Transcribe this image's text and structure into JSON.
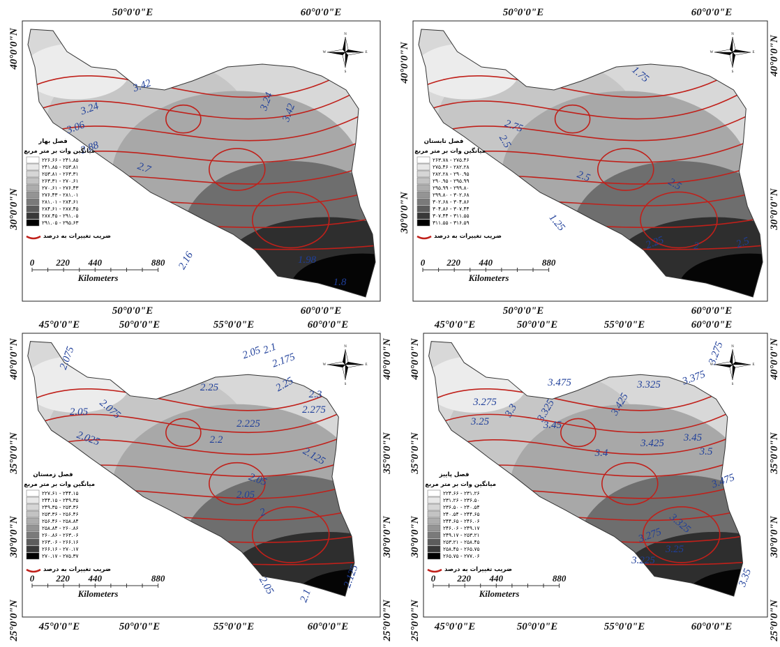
{
  "panels": [
    {
      "season_title": "فصل بهار",
      "legend_title": "میانگین وات بر متر مربع",
      "classes": [
        "۲۲۶.۶۶ - ۲۴۱.۸۵",
        "۲۴۱.۸۵ - ۲۵۳.۸۱",
        "۲۵۳.۸۱ - ۲۶۳.۳۱",
        "۲۶۳.۳۱ - ۲۷۰.۶۱",
        "۲۷۰.۶۱ - ۲۷۶.۴۳",
        "۲۷۶.۴۳ - ۲۸۱.۰۱",
        "۲۸۱.۰۱ - ۲۸۴.۶۱",
        "۲۸۴.۶۱ - ۲۸۷.۴۵",
        "۲۸۷.۴۵ - ۲۹۱.۰۵",
        "۲۹۱.۰۵ - ۲۹۵.۶۳"
      ],
      "isoline_legend": "ضریب تغییرات به درصد",
      "contour_labels": [
        "3.42",
        "3.24",
        "3.06",
        "2.88",
        "2.7",
        "2.16",
        "1.98",
        "1.8",
        "3.24",
        "3.42"
      ],
      "compass": [
        "N",
        "E",
        "S",
        "W"
      ],
      "scale": {
        "ticks": [
          "0",
          "220",
          "440",
          "880"
        ],
        "unit": "Kilometers"
      },
      "axes": {
        "top": [
          "50°0'0\"E",
          "60°0'0\"E"
        ],
        "bottom": [
          "50°0'0\"E",
          "60°0'0\"E"
        ],
        "left": [
          "40°0'0\"N",
          "30°0'0\"N"
        ],
        "right": []
      }
    },
    {
      "season_title": "فصل تابستان",
      "legend_title": "میانگین وات بر متر مربع",
      "classes": [
        "۲۶۳.۷۸ - ۲۷۵.۴۶",
        "۲۷۵.۴۶ - ۲۸۲.۲۸",
        "۲۸۲.۲۸ - ۲۹۰.۹۵",
        "۲۹۰.۹۵ - ۲۹۵.۹۹",
        "۲۹۵.۹۹ - ۲۹۹.۸۰",
        "۲۹۹.۸۰ - ۳۰۲.۶۸",
        "۳۰۲.۶۸ - ۳۰۴.۸۶",
        "۳۰۴.۸۶ - ۳۰۷.۴۴",
        "۳۰۷.۴۴ - ۳۱۱.۵۵",
        "۳۱۱.۵۵ - ۳۱۶.۵۹"
      ],
      "isoline_legend": "ضریب تغییرات به درصد",
      "contour_labels": [
        "1.75",
        "2.75",
        "2.5",
        "2.5",
        "2.5",
        "2.25",
        "2",
        "1.25",
        "2.5"
      ],
      "compass": [
        "N",
        "E",
        "S",
        "W"
      ],
      "scale": {
        "ticks": [
          "0",
          "220",
          "440",
          "880"
        ],
        "unit": "Kilometers"
      },
      "axes": {
        "top": [
          "50°0'0\"E",
          "60°0'0\"E"
        ],
        "bottom": [
          "50°0'0\"E",
          "60°0'0\"E"
        ],
        "left": [
          "40°0'0\"N",
          "30°0'0\"N"
        ],
        "right": [
          "40°0'0\"N",
          "30°0'0\"N"
        ]
      }
    },
    {
      "season_title": "فصل زمستان",
      "legend_title": "میانگین وات بر متر مربع",
      "classes": [
        "۲۲۷.۶۱ - ۲۴۴.۱۵",
        "۲۴۴.۱۵ - ۲۴۹.۳۵",
        "۲۴۹.۳۵ - ۲۵۳.۳۶",
        "۲۵۳.۳۶ - ۲۵۶.۴۶",
        "۲۵۶.۴۶ - ۲۵۸.۸۴",
        "۲۵۸.۸۴ - ۲۶۰.۸۶",
        "۲۶۰.۸۶ - ۲۶۳.۰۶",
        "۲۶۳.۰۶ - ۲۶۶.۱۶",
        "۲۶۶.۱۶ - ۲۷۰.۱۷",
        "۲۷۰.۱۷ - ۲۷۵.۳۷"
      ],
      "isoline_legend": "ضریب تغییرات به درصد",
      "contour_labels": [
        "2.075",
        "2.05",
        "2.1",
        "2.175",
        "2.25",
        "2.25",
        "2.3",
        "2.275",
        "2.05",
        "2.075",
        "2.025",
        "2.2",
        "2.225",
        "2.125",
        "2.05",
        "2.05",
        "2",
        "2.05",
        "2.1",
        "2.125"
      ],
      "compass": [
        "N",
        "E",
        "S",
        "W"
      ],
      "scale": {
        "ticks": [
          "0",
          "220",
          "440",
          "880"
        ],
        "unit": "Kilometers"
      },
      "axes": {
        "top": [
          "45°0'0\"E",
          "50°0'0\"E",
          "55°0'0\"E",
          "60°0'0\"E"
        ],
        "bottom": [
          "45°0'0\"E",
          "50°0'0\"E",
          "55°0'0\"E",
          "60°0'0\"E"
        ],
        "left": [
          "40°0'0\"N",
          "35°0'0\"N",
          "30°0'0\"N",
          "25°0'0\"N"
        ],
        "right": [
          "40°0'0\"N",
          "35°0'0\"N",
          "30°0'0\"N",
          "25°0'0\"N"
        ]
      }
    },
    {
      "season_title": "فصل پاییز",
      "legend_title": "میانگین وات بر متر مربع",
      "classes": [
        "۲۲۴.۶۶ - ۲۳۱.۲۶",
        "۲۳۱.۲۶ - ۲۳۶.۵۰",
        "۲۳۶.۵۰ - ۲۴۰.۵۴",
        "۲۴۰.۵۴ - ۲۴۴.۶۵",
        "۲۴۴.۶۵ - ۲۴۶.۰۶",
        "۲۴۶.۰۶ - ۲۴۹.۱۷",
        "۲۴۹.۱۷ - ۲۵۳.۲۱",
        "۲۵۳.۲۱ - ۲۵۸.۴۵",
        "۲۵۸.۴۵ - ۲۶۵.۷۵",
        "۲۶۵.۷۵ - ۲۷۷.۰۶"
      ],
      "isoline_legend": "ضریب تغییرات به درصد",
      "contour_labels": [
        "3.275",
        "3.25",
        "3.3",
        "3.325",
        "3.45",
        "3.475",
        "3.425",
        "3.325",
        "3.375",
        "3.275",
        "3.425",
        "3.45",
        "3.5",
        "3.475",
        "3.4",
        "3.325",
        "3.275",
        "3.25",
        "3.225",
        "3.35"
      ],
      "compass": [
        "N",
        "E",
        "S",
        "W"
      ],
      "scale": {
        "ticks": [
          "0",
          "220",
          "440",
          "880"
        ],
        "unit": "Kilometers"
      },
      "axes": {
        "top": [
          "45°0'0\"E",
          "50°0'0\"E",
          "55°0'0\"E",
          "60°0'0\"E"
        ],
        "bottom": [
          "45°0'0\"E",
          "50°0'0\"E",
          "55°0'0\"E",
          "60°0'0\"E"
        ],
        "left": [
          "40°0'0\"N",
          "35°0'0\"N",
          "30°0'0\"N",
          "25°0'0\"N"
        ],
        "right": [
          "40°0'0\"N",
          "35°0'0\"N",
          "30°0'0\"N",
          "25°0'0\"N"
        ]
      }
    }
  ]
}
